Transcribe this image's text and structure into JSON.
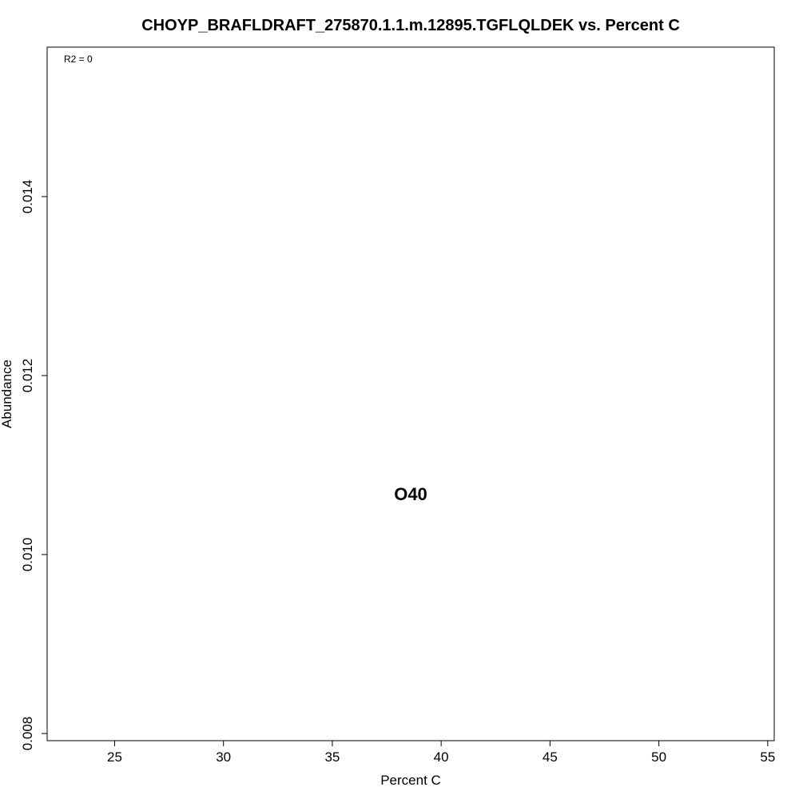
{
  "chart_data": {
    "type": "scatter",
    "title": "CHOYP_BRAFLDRAFT_275870.1.1.m.12895.TGFLQLDEK vs. Percent C",
    "xlabel": "Percent C",
    "ylabel": "Abundance",
    "annotation": "R2 = 0",
    "xlim": [
      21.9,
      55.3
    ],
    "ylim": [
      0.00792,
      0.01567
    ],
    "xticks": [
      25,
      30,
      35,
      40,
      45,
      50,
      55
    ],
    "yticks": [
      0.008,
      0.01,
      0.012,
      0.014
    ],
    "ytick_labels": [
      "0.008",
      "0.010",
      "0.012",
      "0.014"
    ],
    "points": [
      {
        "x": 38.6,
        "y": 0.01066,
        "label": "O40"
      }
    ],
    "grid": false,
    "legend": false
  }
}
